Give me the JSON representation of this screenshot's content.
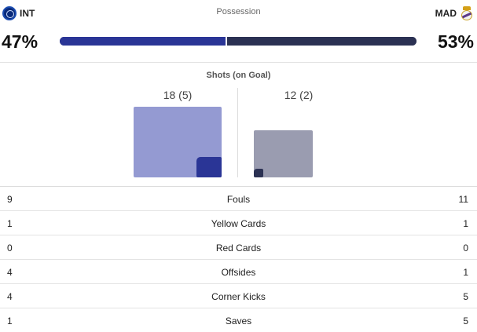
{
  "home": {
    "abbr": "INT",
    "logo": "inter-crest-icon",
    "possession": "47%",
    "possession_fraction": 0.47,
    "shots": "18 (5)",
    "shots_total": 18,
    "shots_on_goal": 5
  },
  "away": {
    "abbr": "MAD",
    "logo": "real-madrid-crest-icon",
    "possession": "53%",
    "possession_fraction": 0.53,
    "shots": "12 (2)",
    "shots_total": 12,
    "shots_on_goal": 2
  },
  "possession_title": "Possession",
  "shots_title": "Shots (on Goal)",
  "colors": {
    "home_primary": "#2a3596",
    "home_light": "#949ad2",
    "away_primary": "#2b3153",
    "away_light": "#9a9cb0"
  },
  "stats": [
    {
      "home": "9",
      "label": "Fouls",
      "away": "11"
    },
    {
      "home": "1",
      "label": "Yellow Cards",
      "away": "1"
    },
    {
      "home": "0",
      "label": "Red Cards",
      "away": "0"
    },
    {
      "home": "4",
      "label": "Offsides",
      "away": "1"
    },
    {
      "home": "4",
      "label": "Corner Kicks",
      "away": "5"
    },
    {
      "home": "1",
      "label": "Saves",
      "away": "5"
    }
  ]
}
